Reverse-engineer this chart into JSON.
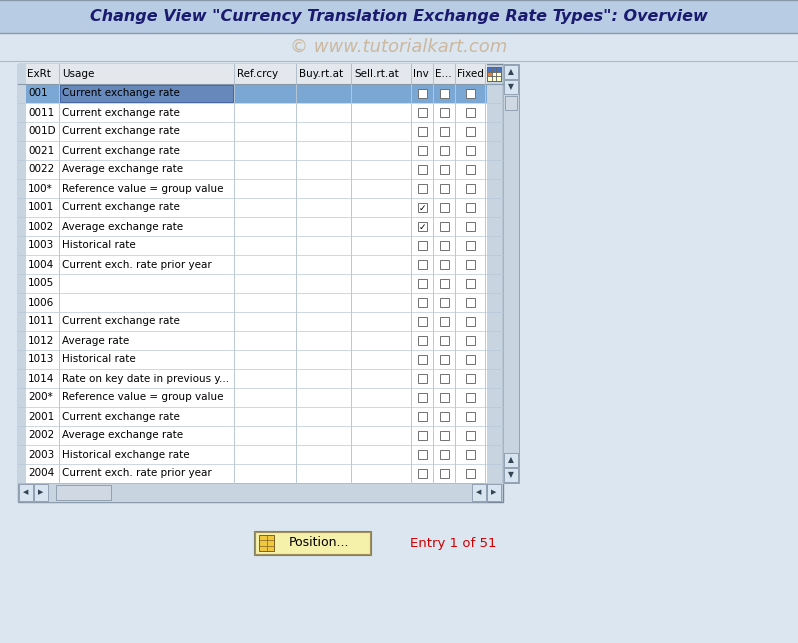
{
  "title": "Change View \"Currency Translation Exchange Rate Types\": Overview",
  "watermark": "© www.tutorialkart.com",
  "bg_color": "#dce6f0",
  "header_bg": "#b8cce4",
  "rows": [
    {
      "exrt": "001",
      "usage": "Current exchange rate",
      "inv": false,
      "e": false,
      "fixed": false,
      "selected": true
    },
    {
      "exrt": "0011",
      "usage": "Current exchange rate",
      "inv": false,
      "e": false,
      "fixed": false,
      "selected": false
    },
    {
      "exrt": "001D",
      "usage": "Current exchange rate",
      "inv": false,
      "e": false,
      "fixed": false,
      "selected": false
    },
    {
      "exrt": "0021",
      "usage": "Current exchange rate",
      "inv": false,
      "e": false,
      "fixed": false,
      "selected": false
    },
    {
      "exrt": "0022",
      "usage": "Average exchange rate",
      "inv": false,
      "e": false,
      "fixed": false,
      "selected": false
    },
    {
      "exrt": "100*",
      "usage": "Reference value = group value",
      "inv": false,
      "e": false,
      "fixed": false,
      "selected": false
    },
    {
      "exrt": "1001",
      "usage": "Current exchange rate",
      "inv": true,
      "e": false,
      "fixed": false,
      "selected": false
    },
    {
      "exrt": "1002",
      "usage": "Average exchange rate",
      "inv": true,
      "e": false,
      "fixed": false,
      "selected": false
    },
    {
      "exrt": "1003",
      "usage": "Historical rate",
      "inv": false,
      "e": false,
      "fixed": false,
      "selected": false
    },
    {
      "exrt": "1004",
      "usage": "Current exch. rate prior year",
      "inv": false,
      "e": false,
      "fixed": false,
      "selected": false
    },
    {
      "exrt": "1005",
      "usage": "",
      "inv": false,
      "e": false,
      "fixed": false,
      "selected": false
    },
    {
      "exrt": "1006",
      "usage": "",
      "inv": false,
      "e": false,
      "fixed": false,
      "selected": false
    },
    {
      "exrt": "1011",
      "usage": "Current exchange rate",
      "inv": false,
      "e": false,
      "fixed": false,
      "selected": false
    },
    {
      "exrt": "1012",
      "usage": "Average rate",
      "inv": false,
      "e": false,
      "fixed": false,
      "selected": false
    },
    {
      "exrt": "1013",
      "usage": "Historical rate",
      "inv": false,
      "e": false,
      "fixed": false,
      "selected": false
    },
    {
      "exrt": "1014",
      "usage": "Rate on key date in previous y...",
      "inv": false,
      "e": false,
      "fixed": false,
      "selected": false
    },
    {
      "exrt": "200*",
      "usage": "Reference value = group value",
      "inv": false,
      "e": false,
      "fixed": false,
      "selected": false
    },
    {
      "exrt": "2001",
      "usage": "Current exchange rate",
      "inv": false,
      "e": false,
      "fixed": false,
      "selected": false
    },
    {
      "exrt": "2002",
      "usage": "Average exchange rate",
      "inv": false,
      "e": false,
      "fixed": false,
      "selected": false
    },
    {
      "exrt": "2003",
      "usage": "Historical exchange rate",
      "inv": false,
      "e": false,
      "fixed": false,
      "selected": false
    },
    {
      "exrt": "2004",
      "usage": "Current exch. rate prior year",
      "inv": false,
      "e": false,
      "fixed": false,
      "selected": false
    }
  ],
  "footer_text": "Entry 1 of 51",
  "button_text": "Position...",
  "title_fontsize": 11.5,
  "watermark_fontsize": 13,
  "table_fontsize": 7.5
}
